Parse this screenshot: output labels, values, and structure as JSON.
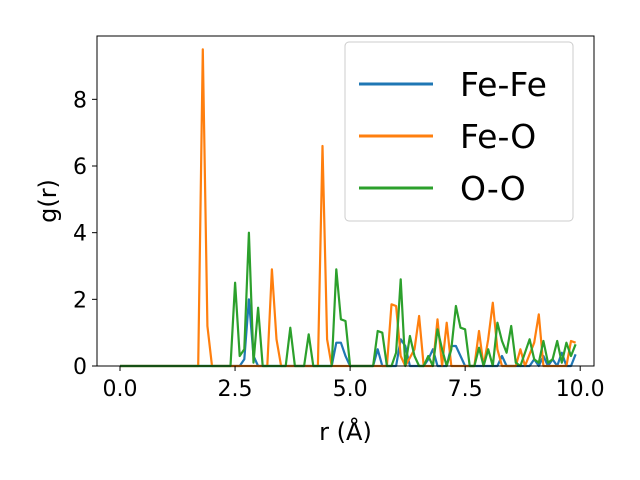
{
  "chart_data": {
    "type": "line",
    "xlabel": "r (Å)",
    "ylabel": "g(r)",
    "xlim": [
      -0.5,
      10.3
    ],
    "ylim": [
      0,
      9.9
    ],
    "xticks": [
      "0.0",
      "2.5",
      "5.0",
      "7.5",
      "10.0"
    ],
    "xtick_values": [
      0,
      2.5,
      5,
      7.5,
      10
    ],
    "yticks": [
      "0",
      "2",
      "4",
      "6",
      "8"
    ],
    "ytick_values": [
      0,
      2,
      4,
      6,
      8
    ],
    "grid": false,
    "legend_position": "top-right",
    "series": [
      {
        "name": "Fe-Fe",
        "color": "#1f77b4",
        "x": [
          0,
          2.6,
          2.7,
          2.8,
          2.9,
          3.0,
          4.6,
          4.7,
          4.8,
          4.9,
          5.0,
          5.5,
          5.6,
          5.7,
          6.0,
          6.1,
          6.2,
          6.3,
          6.6,
          6.7,
          6.8,
          6.9,
          7.1,
          7.2,
          7.3,
          7.4,
          7.5,
          8.2,
          8.3,
          8.4,
          8.9,
          9.0,
          9.1,
          9.2,
          9.3,
          9.4,
          9.5,
          9.6,
          9.7,
          9.8,
          9.9
        ],
        "values": [
          0,
          0,
          0.2,
          2.0,
          0.3,
          0,
          0,
          0.7,
          0.7,
          0.3,
          0,
          0,
          0.5,
          0,
          0,
          0.8,
          0.6,
          0,
          0,
          0.2,
          0.5,
          0,
          0,
          0.6,
          0.6,
          0.3,
          0,
          0,
          0.3,
          0,
          0,
          0.2,
          0,
          0.3,
          0,
          0.2,
          0,
          0.4,
          0,
          0,
          0.35
        ]
      },
      {
        "name": "Fe-O",
        "color": "#ff7f0e",
        "x": [
          0,
          1.7,
          1.8,
          1.9,
          2.0,
          3.2,
          3.3,
          3.4,
          3.5,
          4.3,
          4.4,
          4.5,
          4.6,
          5.8,
          5.9,
          6.0,
          6.1,
          6.2,
          6.4,
          6.5,
          6.6,
          6.8,
          6.9,
          7.0,
          7.1,
          7.2,
          7.7,
          7.8,
          7.9,
          8.0,
          8.1,
          8.2,
          8.3,
          8.6,
          8.7,
          8.8,
          9.0,
          9.1,
          9.2,
          9.7,
          9.8,
          9.9
        ],
        "values": [
          0,
          0,
          9.5,
          1.2,
          0,
          0,
          2.9,
          0.8,
          0,
          0,
          6.6,
          0.8,
          0,
          0,
          1.85,
          1.8,
          0.3,
          0,
          0.5,
          1.5,
          0,
          0,
          1.4,
          0,
          1.3,
          0,
          0,
          1.05,
          0,
          0.8,
          1.9,
          0.5,
          0,
          0,
          0.5,
          0,
          0.7,
          1.55,
          0,
          0,
          0.75,
          0.7
        ]
      },
      {
        "name": "O-O",
        "color": "#2ca02c",
        "x": [
          0,
          2.4,
          2.5,
          2.6,
          2.7,
          2.8,
          2.9,
          3.0,
          3.1,
          3.6,
          3.7,
          3.8,
          4.0,
          4.1,
          4.2,
          4.6,
          4.7,
          4.8,
          4.9,
          5.0,
          5.5,
          5.6,
          5.7,
          5.8,
          5.9,
          6.0,
          6.1,
          6.2,
          6.3,
          6.4,
          6.5,
          6.6,
          6.7,
          6.8,
          6.9,
          7.0,
          7.1,
          7.2,
          7.3,
          7.4,
          7.5,
          7.6,
          7.7,
          7.8,
          7.9,
          8.0,
          8.1,
          8.2,
          8.3,
          8.4,
          8.5,
          8.6,
          8.7,
          8.8,
          8.9,
          9.0,
          9.1,
          9.2,
          9.3,
          9.4,
          9.5,
          9.6,
          9.7,
          9.8,
          9.9
        ],
        "values": [
          0,
          0,
          2.5,
          0.3,
          0.5,
          4.0,
          0.1,
          1.75,
          0,
          0,
          1.15,
          0,
          0,
          0.95,
          0,
          0,
          2.9,
          1.4,
          1.35,
          0,
          0,
          1.05,
          1.0,
          0,
          0,
          0.4,
          2.6,
          0,
          0.9,
          0.3,
          0,
          0,
          0.3,
          0,
          1.1,
          0.5,
          0,
          0.5,
          1.8,
          1.15,
          1.1,
          0,
          0,
          0.55,
          0,
          0.5,
          0,
          1.3,
          0.75,
          0.4,
          1.2,
          0.1,
          0,
          0.4,
          0.8,
          0.2,
          0.1,
          0.75,
          0.1,
          0.2,
          0.75,
          0.1,
          0.7,
          0.3,
          0.65
        ]
      }
    ]
  }
}
